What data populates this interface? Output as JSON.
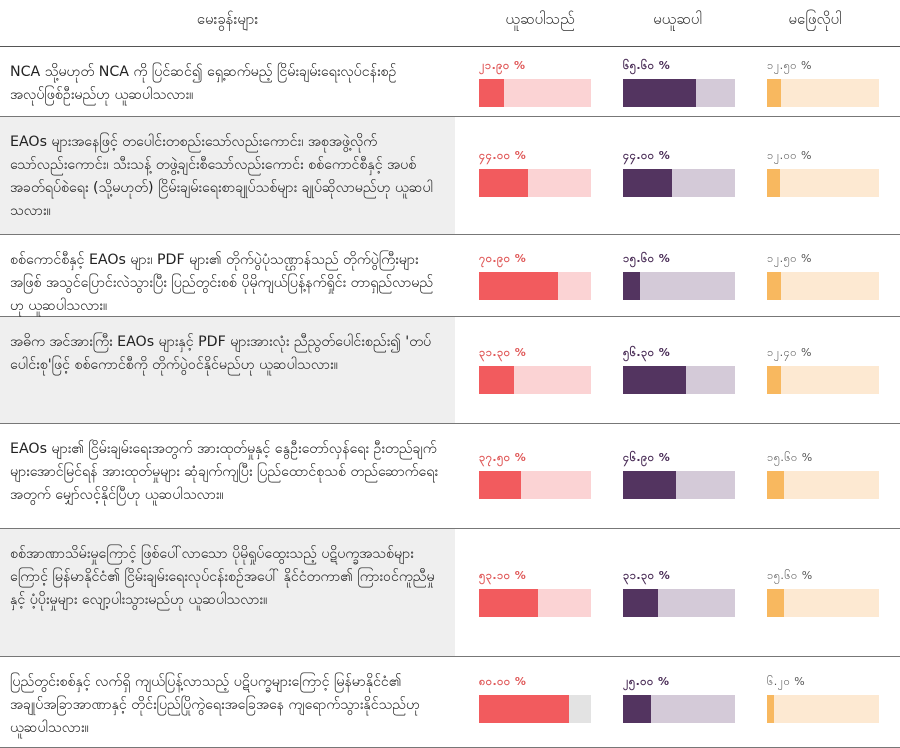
{
  "header": {
    "question": "မေးခွန်းများ",
    "agree": "ယူဆပါသည်",
    "disagree": "မယူဆပါ",
    "dont_know": "မဖြေလိုပါ"
  },
  "colors": {
    "agree_fill": "#f25b5e",
    "agree_track": "#fbd3d4",
    "disagree_fill": "#533460",
    "disagree_track": "#d4cad8",
    "dont_know_fill": "#f8b85f",
    "dont_know_track": "#fde9d2"
  },
  "rows": [
    {
      "question": "NCA သို့မဟုတ် NCA ကို ပြင်ဆင်၍ ရှေ့ဆက်မည့် ငြိမ်းချမ်းရေးလုပ်ငန်းစဉ် အလုပ်ဖြစ်ဦးမည်ဟု ယူဆပါသလား။",
      "agree": {
        "label": "၂၁.၉၀ %",
        "value": 21.9
      },
      "disagree": {
        "label": "၆၅.၆၀ %",
        "value": 65.6
      },
      "dont_know": {
        "label": "၁၂.၅၀ %",
        "value": 12.5
      }
    },
    {
      "question": "EAOs များအနေဖြင့် တပေါင်းတစည်းသော်လည်းကောင်း၊ အစုအဖွဲ့လိုက် သော်လည်းကောင်း၊ သီးသန့် တဖွဲ့ချင်းစီသော်လည်းကောင်း စစ်ကောင်စီနှင့် အပစ်အခတ်ရပ်စဲရေး (သို့မဟုတ်) ငြိမ်းချမ်းရေးစာချုပ်သစ်များ ချုပ်ဆိုလာမည်ဟု ယူဆပါသလား။",
      "agree": {
        "label": "၄၄.၀၀ %",
        "value": 44.0
      },
      "disagree": {
        "label": "၄၄.၀၀ %",
        "value": 44.0
      },
      "dont_know": {
        "label": "၁၂.၀၀ %",
        "value": 12.0
      }
    },
    {
      "question": "စစ်ကောင်စီနှင့် EAOs များ၊ PDF များ၏ တိုက်ပွဲပုံသဏ္ဌာန်သည် တိုက်ပွဲကြီးများအဖြစ် အသွင်ပြောင်းလဲသွားပြီး ပြည်တွင်းစစ် ပိုမိုကျယ်ပြန့်နက်ရှိုင်း တာရှည်လာမည်ဟု ယူဆပါသလား။",
      "agree": {
        "label": "၇၀.၉၀ %",
        "value": 70.9
      },
      "disagree": {
        "label": "၁၅.၆၀ %",
        "value": 15.6
      },
      "dont_know": {
        "label": "၁၂.၅၀ %",
        "value": 12.5
      }
    },
    {
      "question": "အဓိက အင်အားကြီး EAOs များနှင့် PDF များအားလုံး ညီညွတ်ပေါင်းစည်း၍ 'တပ်ပေါင်းစု'ဖြင့် စစ်ကောင်စီကို တိုက်ပွဲဝင်နိုင်မည်ဟု ယူဆပါသလား။",
      "agree": {
        "label": "၃၁.၃၀ %",
        "value": 31.3
      },
      "disagree": {
        "label": "၅၆.၃၀ %",
        "value": 56.3
      },
      "dont_know": {
        "label": "၁၂.၄၀ %",
        "value": 12.4
      }
    },
    {
      "question": "EAOs များ၏ ငြိမ်းချမ်းရေးအတွက် အားထုတ်မှုနှင့် နွေဦးတော်လှန်ရေး ဦးတည်ချက်များအောင်မြင်ရန် အားထုတ်မှုများ ဆုံချက်ကျပြီး ပြည်ထောင်စုသစ် တည်ဆောက်ရေးအတွက် မျှော်လင့်နိုင်ပြီဟု ယူဆပါသလား။",
      "agree": {
        "label": "၃၇.၅၀ %",
        "value": 37.5
      },
      "disagree": {
        "label": "၄၆.၉၀ %",
        "value": 46.9
      },
      "dont_know": {
        "label": "၁၅.၆၀ %",
        "value": 15.6
      }
    },
    {
      "question": "စစ်အာဏာသိမ်းမှုကြောင့် ဖြစ်ပေါ်လာသော ပိုမိုရှုပ်ထွေးသည့် ပဋိပက္ခအသစ်များကြောင့် မြန်မာနိုင်ငံ၏ ငြိမ်းချမ်းရေးလုပ်ငန်းစဉ်အပေါ် နိုင်ငံတကာ၏ ကြားဝင်ကူညီမှုနှင့် ပံ့ပိုးမှုများ လျော့ပါးသွားမည်ဟု ယူဆပါသလား။",
      "agree": {
        "label": "၅၃.၁၀ %",
        "value": 53.1
      },
      "disagree": {
        "label": "၃၁.၃၀ %",
        "value": 31.3
      },
      "dont_know": {
        "label": "၁၅.၆၀ %",
        "value": 15.6
      }
    },
    {
      "question": "ပြည်တွင်းစစ်နှင့် လက်ရှိ ကျယ်ပြန့်လာသည့် ပဋိပက္ခများကြောင့် မြန်မာနိုင်ငံ၏ အချုပ်အခြာအာဏာနှင့် တိုင်းပြည်ပြိုကွဲရေးအခြေအနေ ကျရောက်သွားနိုင်သည်ဟု ယူဆပါသလား။",
      "agree": {
        "label": "၈၀.၀၀ %",
        "value": 80.0
      },
      "disagree": {
        "label": "၂၅.၀၀ %",
        "value": 25.0
      },
      "dont_know": {
        "label": "၆.၂၀ %",
        "value": 6.2
      }
    }
  ]
}
